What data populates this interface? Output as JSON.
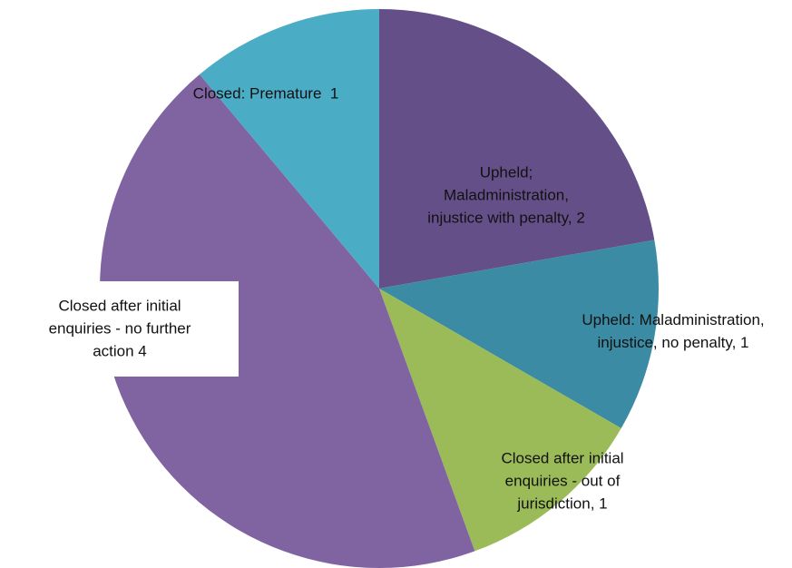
{
  "chart_data": {
    "type": "pie",
    "categories": [
      "Upheld; Maladministration, injustice with penalty, 2",
      "Upheld: Maladministration, injustice, no penalty, 1",
      "Closed after initial enquiries - out of jurisdiction, 1",
      "Closed after initial enquiries - no further action 4",
      "Closed: Premature  1"
    ],
    "values": [
      2,
      1,
      1,
      4,
      1
    ],
    "colors": [
      "#654f88",
      "#3a8ba3",
      "#9bbb59",
      "#8064a2",
      "#4bacc6"
    ]
  }
}
